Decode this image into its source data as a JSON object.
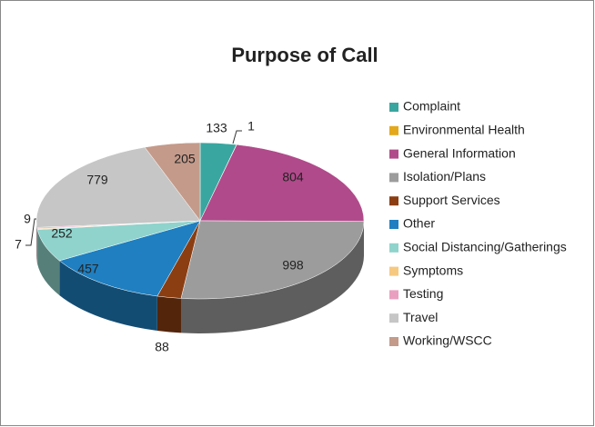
{
  "chart_data": {
    "type": "pie",
    "title": "Purpose of Call",
    "categories": [
      "Complaint",
      "Environmental Health",
      "General Information",
      "Isolation/Plans",
      "Support Services",
      "Other",
      "Social Distancing/Gatherings",
      "Symptoms",
      "Testing",
      "Travel",
      "Working/WSCC"
    ],
    "values": [
      133,
      1,
      804,
      998,
      88,
      457,
      252,
      7,
      9,
      779,
      205
    ],
    "colors": [
      "#3aa6a0",
      "#e3a81c",
      "#b04a8a",
      "#9c9c9c",
      "#8b3e12",
      "#1f7fc0",
      "#8fd3cc",
      "#f6c980",
      "#e9a0c0",
      "#c6c6c6",
      "#c49a8a"
    ],
    "legend": "right"
  }
}
